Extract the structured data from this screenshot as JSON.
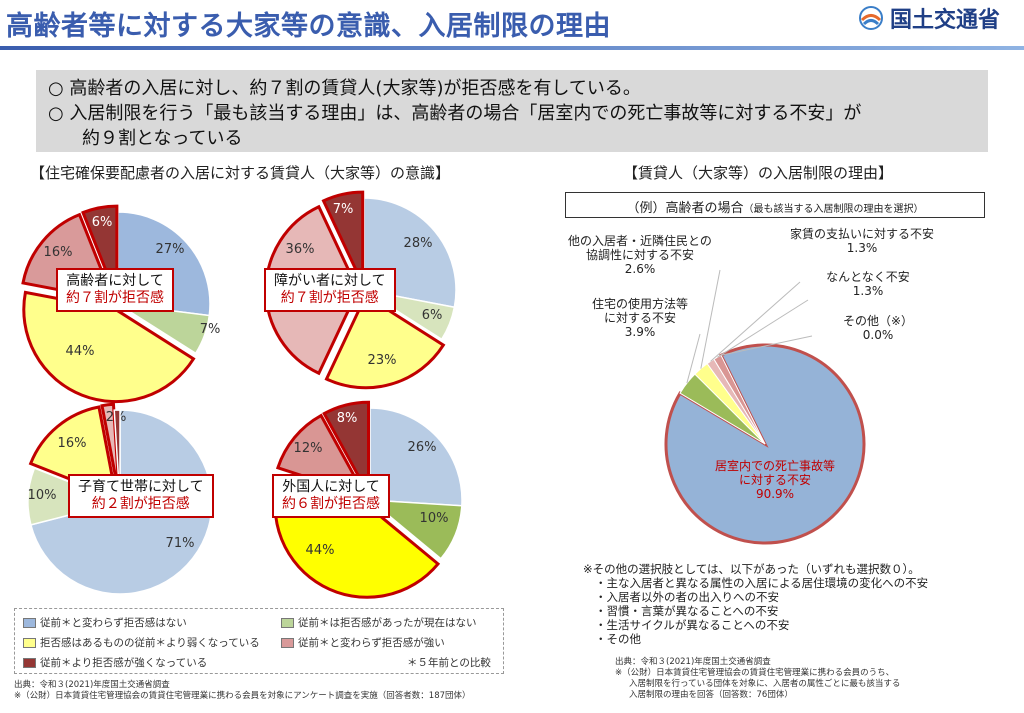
{
  "header": {
    "title": "高齢者等に対する大家等の意識、入居制限の理由",
    "org": "国土交通省"
  },
  "summary": {
    "line1": "○ 高齢者の入居に対し、約７割の賃貸人(大家等)が拒否感を有している。",
    "line2": "○ 入居制限を行う「最も該当する理由」は、高齢者の場合「居室内での死亡事故等に対する不安」が",
    "line3": "約９割となっている"
  },
  "left": {
    "heading": "【住宅確保要配慮者の入居に対する賃貸人（大家等）の意識】",
    "legend": {
      "items": [
        {
          "label": "従前＊と変わらず拒否感はない",
          "color": "#9db8dd"
        },
        {
          "label": "従前＊は拒否感があったが現在はない",
          "color": "#bcd59a"
        },
        {
          "label": "拒否感はあるものの従前＊より弱くなっている",
          "color": "#ffff8c"
        },
        {
          "label": "従前＊と変わらず拒否感が強い",
          "color": "#d99a9a"
        },
        {
          "label": "従前＊より拒否感が強くなっている",
          "color": "#943634"
        }
      ],
      "note": "＊５年前との比較"
    },
    "source": {
      "line1": "出典：令和３(2021)年度国土交通省調査",
      "line2": "※（公財）日本賃貸住宅管理協会の賃貸住宅管理業に携わる会員を対象にアンケート調査を実施（回答者数：187団体）"
    }
  },
  "right": {
    "heading": "【賃貸人（大家等）の入居制限の理由】",
    "example_main": "（例）高齢者の場合",
    "example_note": "（最も該当する入居制限の理由を選択）",
    "notes": [
      "※その他の選択肢としては、以下があった（いずれも選択数０）。",
      "・主な入居者と異なる属性の入居による居住環境の変化への不安",
      "・入居者以外の者の出入りへの不安",
      "・習慣・言葉が異なることへの不安",
      "・生活サイクルが異なることへの不安",
      "・その他"
    ],
    "source": {
      "line1": "出典：令和３(2021)年度国土交通省調査",
      "line2": "※（公財）日本賃貸住宅管理協会の賃貸住宅管理業に携わる会員のうち、",
      "line3": "入居制限を行っている団体を対象に、入居者の属性ごとに最も該当する",
      "line4": "入居制限の理由を回答（回答数：76団体）"
    }
  },
  "chart_data": [
    {
      "type": "pie",
      "id": "elderly",
      "callout": [
        "高齢者に対して",
        "約７割が拒否感"
      ],
      "categories": [
        "従前＊と変わらず拒否感はない",
        "従前＊は拒否感があったが現在はない",
        "拒否感はあるものの従前＊より弱くなっている",
        "従前＊と変わらず拒否感が強い",
        "従前＊より拒否感が強くなっている"
      ],
      "values": [
        27,
        7,
        44,
        16,
        6
      ],
      "labels": [
        "27%",
        "7%",
        "44%",
        "16%",
        "6%"
      ],
      "colors": [
        "#9db8dd",
        "#bcd59a",
        "#ffff8c",
        "#d99a9a",
        "#943634"
      ]
    },
    {
      "type": "pie",
      "id": "disabled",
      "callout": [
        "障がい者に対して",
        "約７割が拒否感"
      ],
      "categories": [
        "従前＊と変わらず拒否感はない",
        "従前＊は拒否感があったが現在はない",
        "拒否感はあるものの従前＊より弱くなっている",
        "従前＊と変わらず拒否感が強い",
        "従前＊より拒否感が強くなっている"
      ],
      "values": [
        28,
        6,
        23,
        36,
        7
      ],
      "labels": [
        "28%",
        "6%",
        "23%",
        "36%",
        "7%"
      ],
      "colors": [
        "#b8cce4",
        "#d7e4bd",
        "#ffff8c",
        "#e6b8b7",
        "#943634"
      ]
    },
    {
      "type": "pie",
      "id": "childrearing",
      "callout": [
        "子育て世帯に対して",
        "約２割が拒否感"
      ],
      "categories": [
        "従前＊と変わらず拒否感はない",
        "従前＊は拒否感があったが現在はない",
        "拒否感はあるものの従前＊より弱くなっている",
        "従前＊と変わらず拒否感が強い",
        "従前＊より拒否感が強くなっている"
      ],
      "values": [
        71,
        10,
        16,
        2,
        1
      ],
      "labels": [
        "71%",
        "10%",
        "16%",
        "2%",
        ""
      ],
      "colors": [
        "#b8cce4",
        "#d7e4bd",
        "#ffff8c",
        "#e6b8b7",
        "#943634"
      ]
    },
    {
      "type": "pie",
      "id": "foreigner",
      "callout": [
        "外国人に対して",
        "約６割が拒否感"
      ],
      "categories": [
        "従前＊と変わらず拒否感はない",
        "従前＊は拒否感があったが現在はない",
        "拒否感はあるものの従前＊より弱くなっている",
        "従前＊と変わらず拒否感が強い",
        "従前＊より拒否感が強くなっている"
      ],
      "values": [
        26,
        10,
        44,
        12,
        8
      ],
      "labels": [
        "26%",
        "10%",
        "44%",
        "12%",
        "8%"
      ],
      "colors": [
        "#b8cce4",
        "#9bbb59",
        "#ffff00",
        "#d99694",
        "#943634"
      ]
    },
    {
      "type": "pie",
      "id": "reasons",
      "categories": [
        "居室内での死亡事故等に対する不安",
        "住宅の使用方法等に対する不安",
        "他の入居者・近隣住民との協調性に対する不安",
        "家賃の支払いに対する不安",
        "なんとなく不安",
        "その他（※）"
      ],
      "values": [
        90.9,
        3.9,
        2.6,
        1.3,
        1.3,
        0.0
      ],
      "labels": [
        [
          "居室内での死亡事故等",
          "に対する不安",
          "90.9%"
        ],
        [
          "住宅の使用方法等",
          "に対する不安",
          "3.9%"
        ],
        [
          "他の入居者・近隣住民との",
          "協調性に対する不安",
          "2.6%"
        ],
        [
          "家賃の支払いに対する不安",
          "1.3%"
        ],
        [
          "なんとなく不安",
          "1.3%"
        ],
        [
          "その他（※）",
          "0.0%"
        ]
      ],
      "colors": [
        "#95b3d7",
        "#9bbb59",
        "#ffff8c",
        "#e6b8b7",
        "#d99694",
        "#943634"
      ]
    }
  ]
}
